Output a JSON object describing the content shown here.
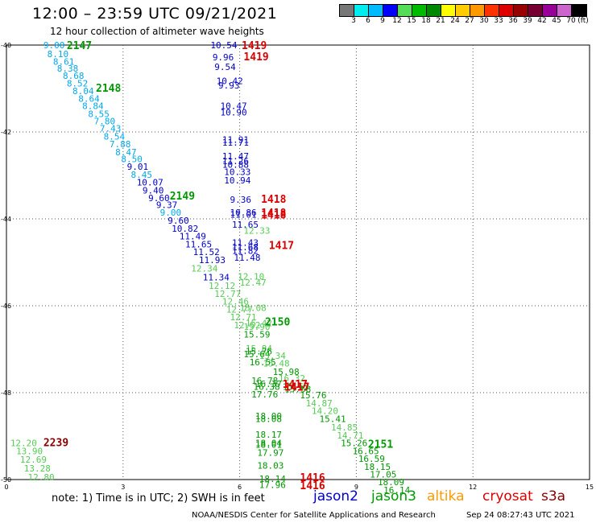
{
  "header": {
    "title": "12:00 – 23:59 UTC 09/21/2021",
    "subtitle": "12 hour collection of altimeter wave heights"
  },
  "colorbar": {
    "colors": [
      "#777777",
      "#00eeee",
      "#00bbff",
      "#0000ff",
      "#55dd55",
      "#00bb00",
      "#008800",
      "#ffff00",
      "#ffcc00",
      "#ff9900",
      "#ff3300",
      "#dd0000",
      "#990000",
      "#770033",
      "#990099",
      "#cc66cc",
      "#000000"
    ],
    "labels": [
      "3",
      "6",
      "9",
      "12",
      "15",
      "18",
      "21",
      "24",
      "27",
      "30",
      "33",
      "36",
      "39",
      "42",
      "45",
      "70"
    ],
    "unit": "(ft)"
  },
  "colors": {
    "jason2": "#0000cc",
    "jason3": "#009900",
    "altika": "#ff9900",
    "cryosat": "#dd0000",
    "s3a": "#880000",
    "grid": "#555555"
  },
  "footer": {
    "note": "note:  1) Time is in UTC;  2) SWH is in feet",
    "credit": "NOAA/NESDIS Center for Satellite Applications and Research",
    "timestamp": "Sep 24 08:27:43 UTC 2021"
  },
  "legend": [
    {
      "label": "jason2",
      "color": "#0000cc"
    },
    {
      "label": "jason3",
      "color": "#009900"
    },
    {
      "label": "altika",
      "color": "#ff9900"
    },
    {
      "label": "cryosat",
      "color": "#dd0000"
    },
    {
      "label": "s3a",
      "color": "#880000"
    }
  ],
  "chart_data": {
    "type": "scatter",
    "x_ticks": [
      "0",
      "3",
      "6",
      "9",
      "12",
      "15"
    ],
    "y_ticks": [
      "-40",
      "-42",
      "-44",
      "-46",
      "-48",
      "-50"
    ],
    "xlim": [
      0,
      15
    ],
    "ylim": [
      -50,
      -40
    ],
    "grid": true,
    "swh_labels": [
      {
        "x": 0.95,
        "y": -40.0,
        "t": "9.00",
        "c": "#00aaee"
      },
      {
        "x": 1.05,
        "y": -40.2,
        "t": "8.10",
        "c": "#00aaee"
      },
      {
        "x": 1.2,
        "y": -40.38,
        "t": "8.61",
        "c": "#00aaee"
      },
      {
        "x": 1.3,
        "y": -40.54,
        "t": "8.38",
        "c": "#00aaee"
      },
      {
        "x": 1.45,
        "y": -40.7,
        "t": "8.68",
        "c": "#00aaee"
      },
      {
        "x": 1.55,
        "y": -40.88,
        "t": "8.52",
        "c": "#00aaee"
      },
      {
        "x": 1.7,
        "y": -41.06,
        "t": "8.04",
        "c": "#00aaee"
      },
      {
        "x": 1.85,
        "y": -41.23,
        "t": "8.64",
        "c": "#00aaee"
      },
      {
        "x": 1.95,
        "y": -41.4,
        "t": "8.84",
        "c": "#00aaee"
      },
      {
        "x": 2.1,
        "y": -41.58,
        "t": "8.55",
        "c": "#00aaee"
      },
      {
        "x": 2.25,
        "y": -41.75,
        "t": "7.80",
        "c": "#00aaee"
      },
      {
        "x": 2.4,
        "y": -41.92,
        "t": "7.43",
        "c": "#00aaee"
      },
      {
        "x": 2.5,
        "y": -42.1,
        "t": "8.54",
        "c": "#00aaee"
      },
      {
        "x": 2.65,
        "y": -42.28,
        "t": "7.88",
        "c": "#00aaee"
      },
      {
        "x": 2.8,
        "y": -42.46,
        "t": "8.47",
        "c": "#00aaee"
      },
      {
        "x": 2.95,
        "y": -42.62,
        "t": "8.50",
        "c": "#00aaee"
      },
      {
        "x": 3.1,
        "y": -42.8,
        "t": "9.01",
        "c": "#0000cc"
      },
      {
        "x": 3.2,
        "y": -42.98,
        "t": "8.45",
        "c": "#00aaee"
      },
      {
        "x": 3.35,
        "y": -43.16,
        "t": "10.07",
        "c": "#0000cc"
      },
      {
        "x": 3.5,
        "y": -43.34,
        "t": "9.40",
        "c": "#0000cc"
      },
      {
        "x": 3.65,
        "y": -43.52,
        "t": "9.60",
        "c": "#0000cc"
      },
      {
        "x": 3.85,
        "y": -43.68,
        "t": "9.37",
        "c": "#0000cc"
      },
      {
        "x": 3.95,
        "y": -43.85,
        "t": "9.00",
        "c": "#00aaee"
      },
      {
        "x": 4.15,
        "y": -44.04,
        "t": "9.60",
        "c": "#0000cc"
      },
      {
        "x": 4.25,
        "y": -44.22,
        "t": "10.82",
        "c": "#0000cc"
      },
      {
        "x": 4.45,
        "y": -44.4,
        "t": "11.49",
        "c": "#0000cc"
      },
      {
        "x": 4.6,
        "y": -44.58,
        "t": "11.65",
        "c": "#0000cc"
      },
      {
        "x": 4.8,
        "y": -44.76,
        "t": "11.52",
        "c": "#0000cc"
      },
      {
        "x": 4.95,
        "y": -44.94,
        "t": "11.93",
        "c": "#0000cc"
      },
      {
        "x": 4.75,
        "y": -45.14,
        "t": "12.34",
        "c": "#55cc55"
      },
      {
        "x": 5.05,
        "y": -45.34,
        "t": "11.34",
        "c": "#0000cc"
      },
      {
        "x": 5.2,
        "y": -45.54,
        "t": "12.12",
        "c": "#55cc55"
      },
      {
        "x": 5.35,
        "y": -45.72,
        "t": "12.77",
        "c": "#55cc55"
      },
      {
        "x": 5.55,
        "y": -45.9,
        "t": "12.46",
        "c": "#55cc55"
      },
      {
        "x": 5.65,
        "y": -46.08,
        "t": "12.77",
        "c": "#55cc55"
      },
      {
        "x": 5.75,
        "y": -46.26,
        "t": "12.71",
        "c": "#55cc55"
      },
      {
        "x": 5.85,
        "y": -46.44,
        "t": "12.52",
        "c": "#55cc55"
      },
      {
        "x": 5.25,
        "y": -40.0,
        "t": "10.54",
        "c": "#0000cc"
      },
      {
        "x": 5.3,
        "y": -40.28,
        "t": "9.96",
        "c": "#0000cc"
      },
      {
        "x": 5.35,
        "y": -40.5,
        "t": "9.54",
        "c": "#0000cc"
      },
      {
        "x": 5.4,
        "y": -40.82,
        "t": "10.42",
        "c": "#0000cc"
      },
      {
        "x": 5.45,
        "y": -40.93,
        "t": "9.93",
        "c": "#0000cc"
      },
      {
        "x": 5.5,
        "y": -41.4,
        "t": "10.47",
        "c": "#0000cc"
      },
      {
        "x": 5.5,
        "y": -41.55,
        "t": "10.90",
        "c": "#0000cc"
      },
      {
        "x": 5.55,
        "y": -42.18,
        "t": "11.91",
        "c": "#0000cc"
      },
      {
        "x": 5.55,
        "y": -42.24,
        "t": "11.71",
        "c": "#0000cc"
      },
      {
        "x": 5.55,
        "y": -42.56,
        "t": "11.47",
        "c": "#0000cc"
      },
      {
        "x": 5.55,
        "y": -42.67,
        "t": "11.26",
        "c": "#0000cc"
      },
      {
        "x": 5.55,
        "y": -42.75,
        "t": "10.88",
        "c": "#0000cc"
      },
      {
        "x": 5.6,
        "y": -42.92,
        "t": "10.33",
        "c": "#0000cc"
      },
      {
        "x": 5.6,
        "y": -43.11,
        "t": "10.94",
        "c": "#0000cc"
      },
      {
        "x": 5.75,
        "y": -43.56,
        "t": "9.36",
        "c": "#0000cc"
      },
      {
        "x": 5.75,
        "y": -43.85,
        "t": "10.86",
        "c": "#0000cc"
      },
      {
        "x": 5.75,
        "y": -43.9,
        "t": "11.01",
        "c": "#0000cc"
      },
      {
        "x": 5.8,
        "y": -44.13,
        "t": "11.65",
        "c": "#0000cc"
      },
      {
        "x": 6.1,
        "y": -44.27,
        "t": "12.33",
        "c": "#55cc55"
      },
      {
        "x": 5.8,
        "y": -44.55,
        "t": "11.43",
        "c": "#0000cc"
      },
      {
        "x": 5.8,
        "y": -44.65,
        "t": "11.68",
        "c": "#0000cc"
      },
      {
        "x": 5.8,
        "y": -44.73,
        "t": "11.82",
        "c": "#0000cc"
      },
      {
        "x": 5.85,
        "y": -44.89,
        "t": "11.48",
        "c": "#0000cc"
      },
      {
        "x": 5.95,
        "y": -45.32,
        "t": "12.10",
        "c": "#55cc55"
      },
      {
        "x": 6.0,
        "y": -45.46,
        "t": "12.47",
        "c": "#55cc55"
      },
      {
        "x": 6.0,
        "y": -46.05,
        "t": "15.08",
        "c": "#55cc55"
      },
      {
        "x": 6.15,
        "y": -46.4,
        "t": "15.42",
        "c": "#55cc55"
      },
      {
        "x": 6.1,
        "y": -46.48,
        "t": "15.90",
        "c": "#55cc55"
      },
      {
        "x": 6.1,
        "y": -46.66,
        "t": "15.59",
        "c": "#009900"
      },
      {
        "x": 6.15,
        "y": -46.98,
        "t": "15.84",
        "c": "#55cc55"
      },
      {
        "x": 6.15,
        "y": -47.05,
        "t": "15.76",
        "c": "#009900"
      },
      {
        "x": 6.1,
        "y": -47.11,
        "t": "15.64",
        "c": "#009900"
      },
      {
        "x": 6.5,
        "y": -47.15,
        "t": "15.34",
        "c": "#55cc55"
      },
      {
        "x": 6.6,
        "y": -47.32,
        "t": "15.48",
        "c": "#55cc55"
      },
      {
        "x": 6.25,
        "y": -47.3,
        "t": "16.55",
        "c": "#009900"
      },
      {
        "x": 6.85,
        "y": -47.52,
        "t": "15.98",
        "c": "#009900"
      },
      {
        "x": 7.0,
        "y": -47.67,
        "t": "16.32",
        "c": "#55cc55"
      },
      {
        "x": 6.3,
        "y": -47.72,
        "t": "16.78",
        "c": "#009900"
      },
      {
        "x": 6.4,
        "y": -47.8,
        "t": "16.37",
        "c": "#009900"
      },
      {
        "x": 6.35,
        "y": -47.86,
        "t": "16.38",
        "c": "#009900"
      },
      {
        "x": 7.1,
        "y": -47.86,
        "t": "15.55",
        "c": "#009900"
      },
      {
        "x": 7.15,
        "y": -47.92,
        "t": "15.58",
        "c": "#009900"
      },
      {
        "x": 6.3,
        "y": -48.04,
        "t": "17.76",
        "c": "#009900"
      },
      {
        "x": 7.55,
        "y": -48.06,
        "t": "15.76",
        "c": "#009900"
      },
      {
        "x": 7.7,
        "y": -48.24,
        "t": "14.87",
        "c": "#55cc55"
      },
      {
        "x": 7.85,
        "y": -48.42,
        "t": "14.20",
        "c": "#55cc55"
      },
      {
        "x": 6.4,
        "y": -48.54,
        "t": "18.00",
        "c": "#009900"
      },
      {
        "x": 6.4,
        "y": -48.6,
        "t": "18.08",
        "c": "#009900"
      },
      {
        "x": 8.05,
        "y": -48.6,
        "t": "15.41",
        "c": "#009900"
      },
      {
        "x": 8.35,
        "y": -48.8,
        "t": "14.85",
        "c": "#55cc55"
      },
      {
        "x": 6.4,
        "y": -48.96,
        "t": "18.17",
        "c": "#009900"
      },
      {
        "x": 8.5,
        "y": -48.98,
        "t": "14.71",
        "c": "#55cc55"
      },
      {
        "x": 6.4,
        "y": -49.16,
        "t": "18.04",
        "c": "#009900"
      },
      {
        "x": 6.4,
        "y": -49.19,
        "t": "18.01",
        "c": "#009900"
      },
      {
        "x": 8.6,
        "y": -49.16,
        "t": "15.26",
        "c": "#009900"
      },
      {
        "x": 8.9,
        "y": -49.34,
        "t": "16.65",
        "c": "#009900"
      },
      {
        "x": 6.45,
        "y": -49.38,
        "t": "17.97",
        "c": "#009900"
      },
      {
        "x": 9.05,
        "y": -49.52,
        "t": "16.59",
        "c": "#009900"
      },
      {
        "x": 6.45,
        "y": -49.68,
        "t": "18.03",
        "c": "#009900"
      },
      {
        "x": 9.2,
        "y": -49.7,
        "t": "18.15",
        "c": "#009900"
      },
      {
        "x": 9.35,
        "y": -49.88,
        "t": "17.05",
        "c": "#009900"
      },
      {
        "x": 6.5,
        "y": -49.98,
        "t": "18.14",
        "c": "#009900"
      },
      {
        "x": 9.55,
        "y": -50.06,
        "t": "18.09",
        "c": "#009900"
      },
      {
        "x": 6.5,
        "y": -50.12,
        "t": "17.96",
        "c": "#009900"
      },
      {
        "x": 9.7,
        "y": -50.24,
        "t": "16.14",
        "c": "#009900"
      },
      {
        "x": 0.1,
        "y": -49.16,
        "t": "12.20",
        "c": "#55cc55"
      },
      {
        "x": 0.25,
        "y": -49.34,
        "t": "13.90",
        "c": "#55cc55"
      },
      {
        "x": 0.35,
        "y": -49.54,
        "t": "12.69",
        "c": "#55cc55"
      },
      {
        "x": 0.45,
        "y": -49.74,
        "t": "13.28",
        "c": "#55cc55"
      },
      {
        "x": 0.55,
        "y": -49.94,
        "t": "12.80",
        "c": "#55cc55"
      }
    ],
    "pass_labels": [
      {
        "x": 1.55,
        "y": -40.0,
        "t": "2147",
        "c": "#009900"
      },
      {
        "x": 2.3,
        "y": -40.98,
        "t": "2148",
        "c": "#009900"
      },
      {
        "x": 4.2,
        "y": -43.46,
        "t": "2149",
        "c": "#009900"
      },
      {
        "x": 6.65,
        "y": -46.36,
        "t": "2150",
        "c": "#009900"
      },
      {
        "x": 9.3,
        "y": -49.18,
        "t": "2151",
        "c": "#009900"
      },
      {
        "x": 0.95,
        "y": -49.14,
        "t": "2239",
        "c": "#880000"
      },
      {
        "x": 6.05,
        "y": -40.0,
        "t": "1419",
        "c": "#dd0000"
      },
      {
        "x": 6.1,
        "y": -40.26,
        "t": "1419",
        "c": "#dd0000"
      },
      {
        "x": 6.55,
        "y": -43.54,
        "t": "1418",
        "c": "#dd0000"
      },
      {
        "x": 6.55,
        "y": -43.85,
        "t": "1418",
        "c": "#dd0000"
      },
      {
        "x": 6.55,
        "y": -43.9,
        "t": "1418",
        "c": "#dd0000"
      },
      {
        "x": 6.75,
        "y": -44.6,
        "t": "1417",
        "c": "#dd0000"
      },
      {
        "x": 7.1,
        "y": -47.8,
        "t": "1417",
        "c": "#dd0000"
      },
      {
        "x": 7.15,
        "y": -47.86,
        "t": "1417",
        "c": "#dd0000"
      },
      {
        "x": 7.55,
        "y": -49.94,
        "t": "1416",
        "c": "#dd0000"
      },
      {
        "x": 7.55,
        "y": -50.13,
        "t": "1416",
        "c": "#dd0000"
      }
    ]
  }
}
